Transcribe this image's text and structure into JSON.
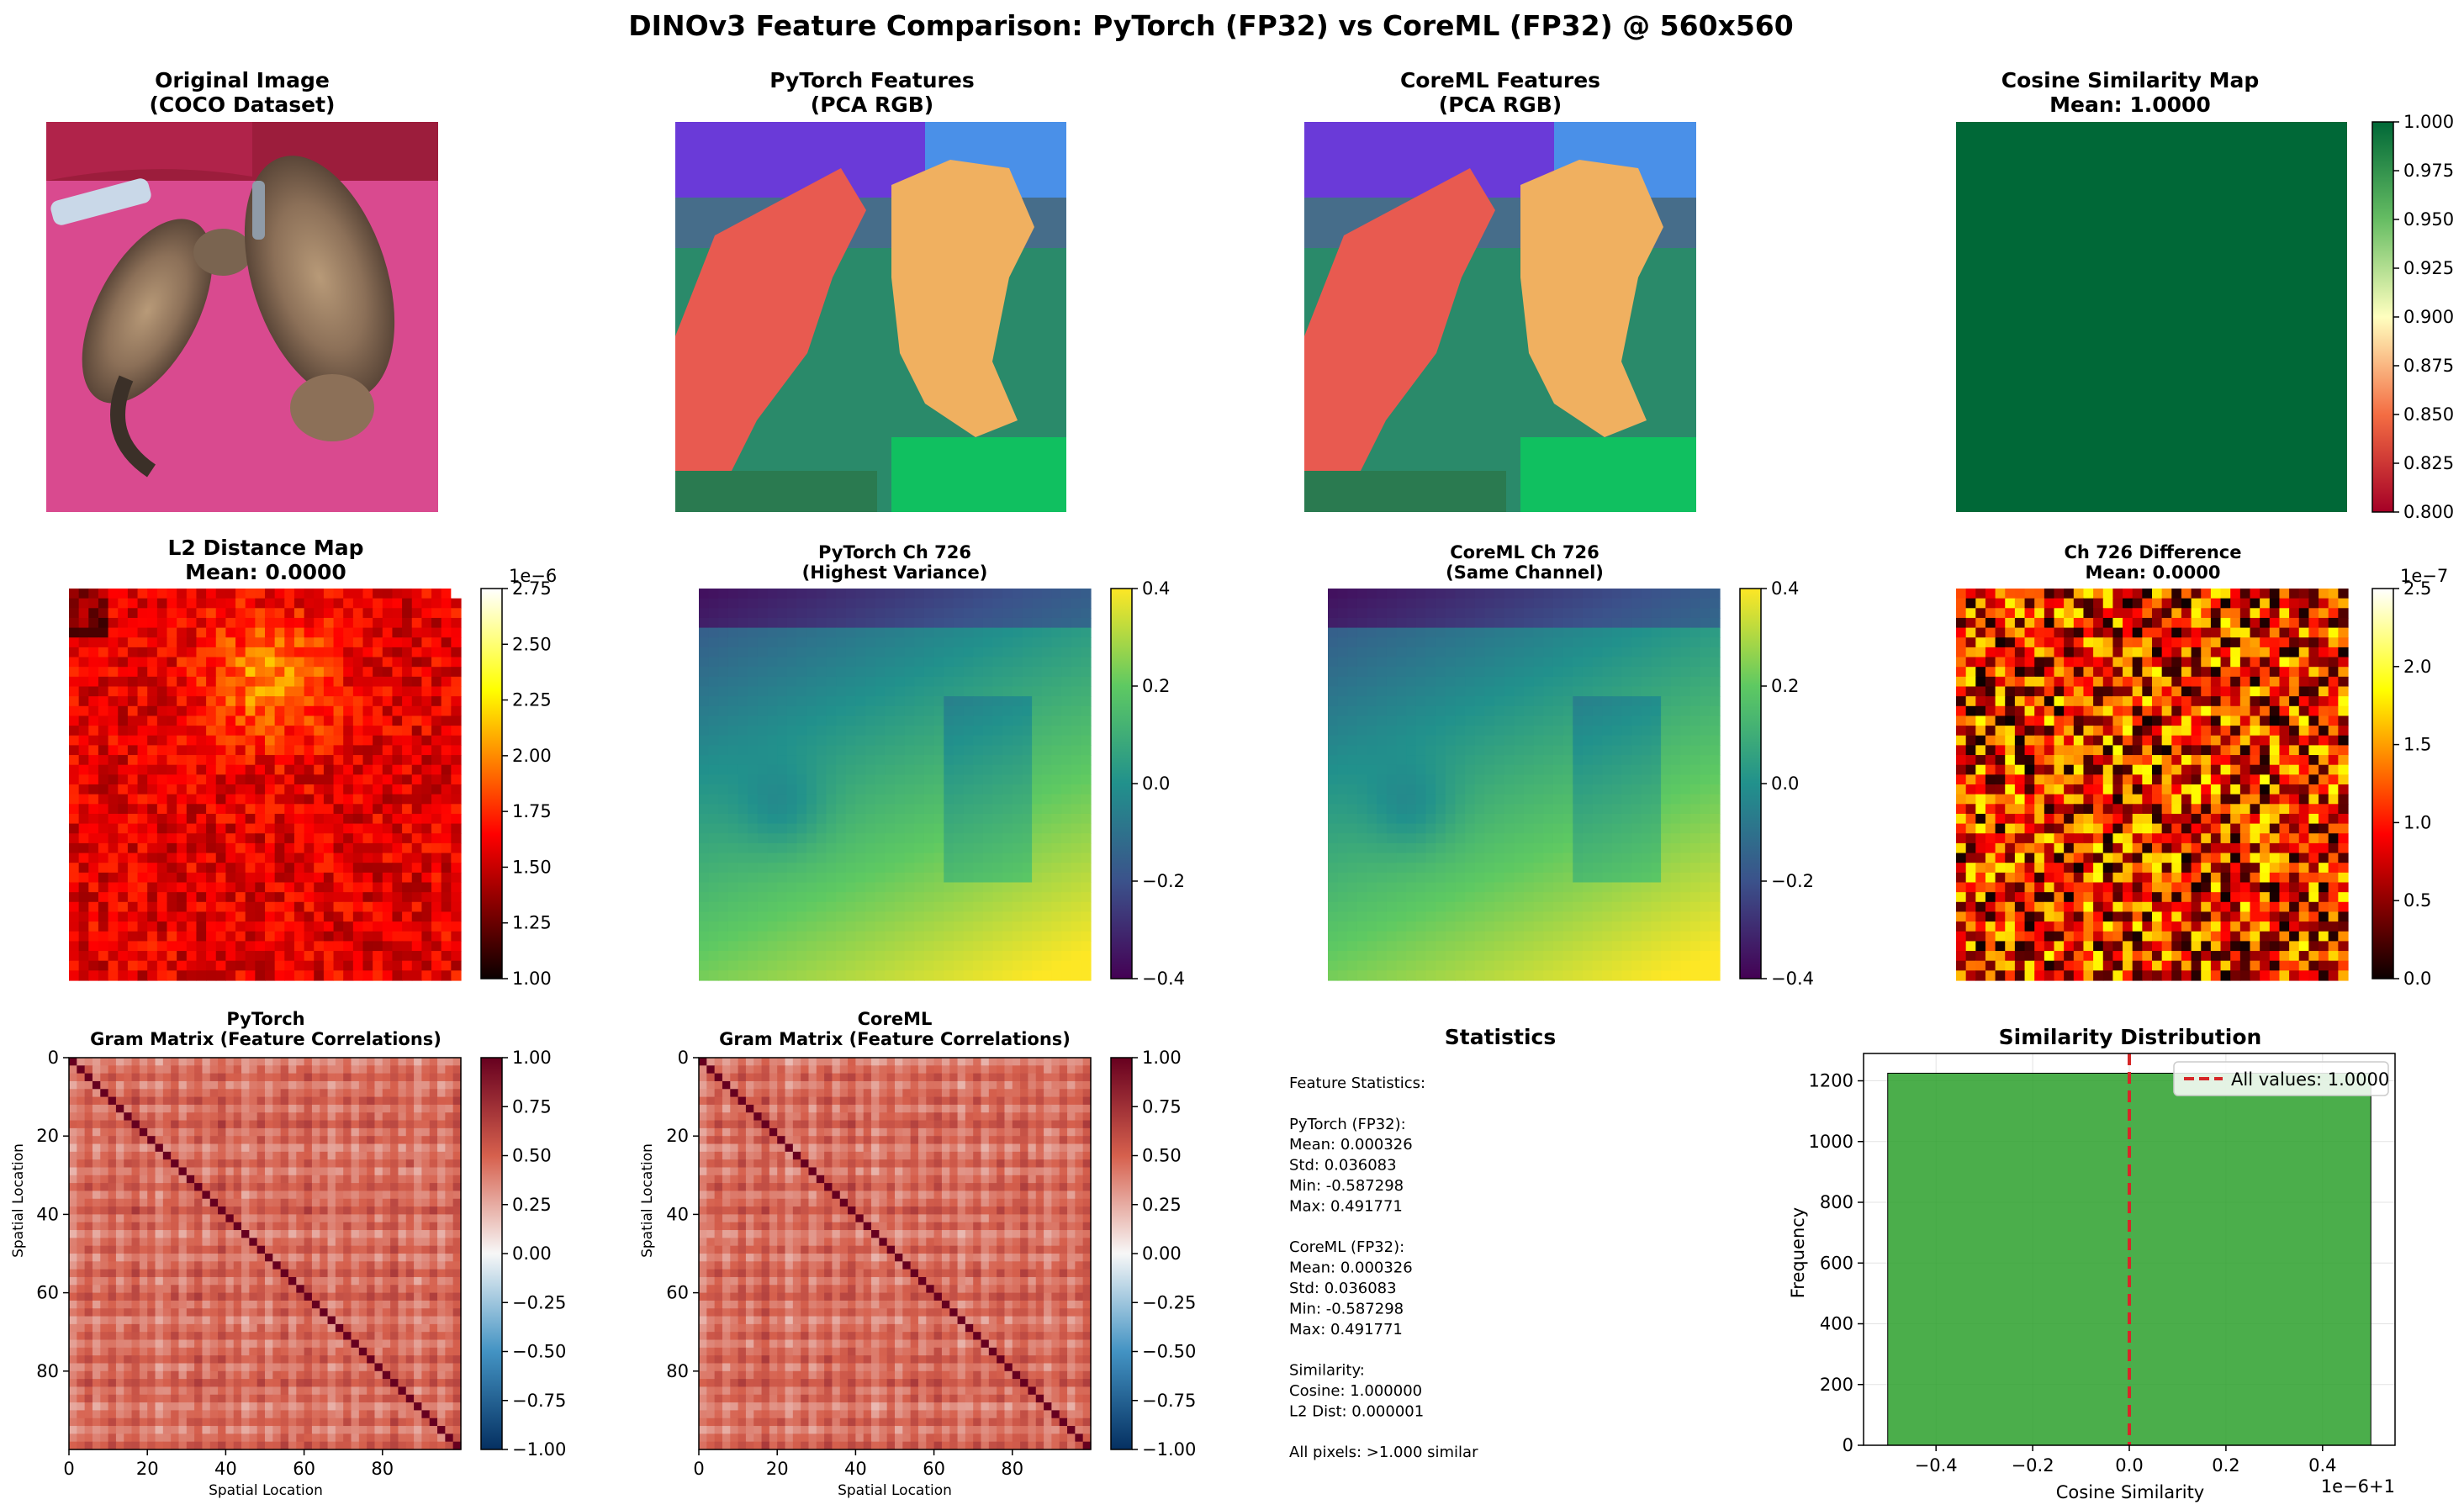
{
  "figure": {
    "suptitle": "DINOv3 Feature Comparison: PyTorch (FP32) vs CoreML (FP32) @ 560x560"
  },
  "panels": {
    "original": {
      "title1": "Original Image",
      "title2": "(COCO Dataset)"
    },
    "pca_pytorch": {
      "title1": "PyTorch Features",
      "title2": "(PCA RGB)"
    },
    "pca_coreml": {
      "title1": "CoreML Features",
      "title2": "(PCA RGB)"
    },
    "cosine_map": {
      "title1": "Cosine Similarity Map",
      "title2": "Mean: 1.0000",
      "fill": "#006837",
      "colorbar": {
        "cmap": "RdYlGn",
        "ticks": [
          "0.800",
          "0.825",
          "0.850",
          "0.875",
          "0.900",
          "0.925",
          "0.950",
          "0.975",
          "1.000"
        ]
      }
    },
    "l2_map": {
      "title1": "L2 Distance Map",
      "title2": "Mean: 0.0000",
      "colorbar": {
        "cmap": "hot",
        "offset_label": "1e−6",
        "ticks": [
          "1.00",
          "1.25",
          "1.50",
          "1.75",
          "2.00",
          "2.25",
          "2.50",
          "2.75"
        ]
      }
    },
    "ch_pytorch": {
      "title1": "PyTorch Ch 726",
      "title2": "(Highest Variance)",
      "colorbar": {
        "cmap": "viridis",
        "ticks": [
          "0.4",
          "0.2",
          "0.0",
          "−0.2",
          "−0.4"
        ]
      }
    },
    "ch_coreml": {
      "title1": "CoreML Ch 726",
      "title2": "(Same Channel)",
      "colorbar": {
        "cmap": "viridis",
        "ticks": [
          "0.4",
          "0.2",
          "0.0",
          "−0.2",
          "−0.4"
        ]
      }
    },
    "ch_diff": {
      "title1": "Ch 726 Difference",
      "title2": "Mean: 0.0000",
      "colorbar": {
        "cmap": "hot",
        "offset_label": "1e−7",
        "ticks": [
          "0.0",
          "0.5",
          "1.0",
          "1.5",
          "2.0",
          "2.5"
        ]
      }
    },
    "gram_pytorch": {
      "title1": "PyTorch",
      "title2": "Gram Matrix (Feature Correlations)",
      "xlabel": "Spatial Location",
      "ylabel": "Spatial Location",
      "xticks": [
        "0",
        "20",
        "40",
        "60",
        "80"
      ],
      "yticks": [
        "0",
        "20",
        "40",
        "60",
        "80"
      ],
      "colorbar": {
        "cmap": "RdBu_r",
        "ticks": [
          "1.00",
          "0.75",
          "0.50",
          "0.25",
          "0.00",
          "−0.25",
          "−0.50",
          "−0.75",
          "−1.00"
        ]
      }
    },
    "gram_coreml": {
      "title1": "CoreML",
      "title2": "Gram Matrix (Feature Correlations)",
      "xlabel": "Spatial Location",
      "ylabel": "Spatial Location",
      "xticks": [
        "0",
        "20",
        "40",
        "60",
        "80"
      ],
      "yticks": [
        "0",
        "20",
        "40",
        "60",
        "80"
      ],
      "colorbar": {
        "cmap": "RdBu_r",
        "ticks": [
          "1.00",
          "0.75",
          "0.50",
          "0.25",
          "0.00",
          "−0.25",
          "−0.50",
          "−0.75",
          "−1.00"
        ]
      }
    },
    "statistics": {
      "title": "Statistics",
      "lines": [
        "Feature Statistics:",
        "",
        "PyTorch (FP32):",
        "  Mean: 0.000326",
        "  Std:  0.036083",
        "  Min:  -0.587298",
        "  Max:  0.491771",
        "",
        "CoreML (FP32):",
        "  Mean: 0.000326",
        "  Std:  0.036083",
        "  Min:  -0.587298",
        "  Max:  0.491771",
        "",
        "Similarity:",
        "  Cosine: 1.000000",
        "  L2 Dist: 0.000001",
        "",
        "All pixels: >1.000 similar"
      ]
    },
    "hist": {
      "title": "Similarity Distribution",
      "xlabel": "Cosine Similarity",
      "ylabel": "Frequency",
      "offset_label": "1e−6+1",
      "legend": "All values: 1.0000",
      "bar_color": "#2ca02c",
      "line_color": "#d62728"
    }
  },
  "chart_data": [
    {
      "type": "heatmap",
      "title": "Cosine Similarity Map",
      "subtitle": "Mean: 1.0000",
      "value": 1.0,
      "colorbar_range": [
        0.8,
        1.0
      ]
    },
    {
      "type": "heatmap",
      "title": "L2 Distance Map",
      "subtitle": "Mean: 0.0000",
      "colorbar_range": [
        9e-07,
        2.95e-06
      ]
    },
    {
      "type": "heatmap",
      "title": "PyTorch Ch 726",
      "subtitle": "(Highest Variance)",
      "colorbar_range": [
        -0.45,
        0.49
      ]
    },
    {
      "type": "heatmap",
      "title": "CoreML Ch 726",
      "subtitle": "(Same Channel)",
      "colorbar_range": [
        -0.45,
        0.49
      ]
    },
    {
      "type": "heatmap",
      "title": "Ch 726 Difference",
      "subtitle": "Mean: 0.0000",
      "colorbar_range": [
        0,
        2.55e-07
      ]
    },
    {
      "type": "heatmap",
      "title": "PyTorch Gram Matrix (Feature Correlations)",
      "xlabel": "Spatial Location",
      "ylabel": "Spatial Location",
      "xlim": [
        0,
        100
      ],
      "ylim": [
        100,
        0
      ],
      "colorbar_range": [
        -1,
        1
      ]
    },
    {
      "type": "heatmap",
      "title": "CoreML Gram Matrix (Feature Correlations)",
      "xlabel": "Spatial Location",
      "ylabel": "Spatial Location",
      "xlim": [
        0,
        100
      ],
      "ylim": [
        100,
        0
      ],
      "colorbar_range": [
        -1,
        1
      ]
    },
    {
      "type": "bar",
      "title": "Similarity Distribution",
      "xlabel": "Cosine Similarity",
      "ylabel": "Frequency",
      "x_offset": "1e−6+1",
      "xlim": [
        -0.55,
        0.55
      ],
      "ylim": [
        0,
        1290
      ],
      "xticks": [
        -0.4,
        -0.2,
        0.0,
        0.2,
        0.4
      ],
      "yticks": [
        0,
        200,
        400,
        600,
        800,
        1000,
        1200
      ],
      "bins": [
        {
          "from": -0.5,
          "to": 0.5,
          "value": 1225
        }
      ],
      "vline": {
        "x": 0.0,
        "label": "All values: 1.0000"
      },
      "legend": "top-right",
      "grid": true
    }
  ]
}
